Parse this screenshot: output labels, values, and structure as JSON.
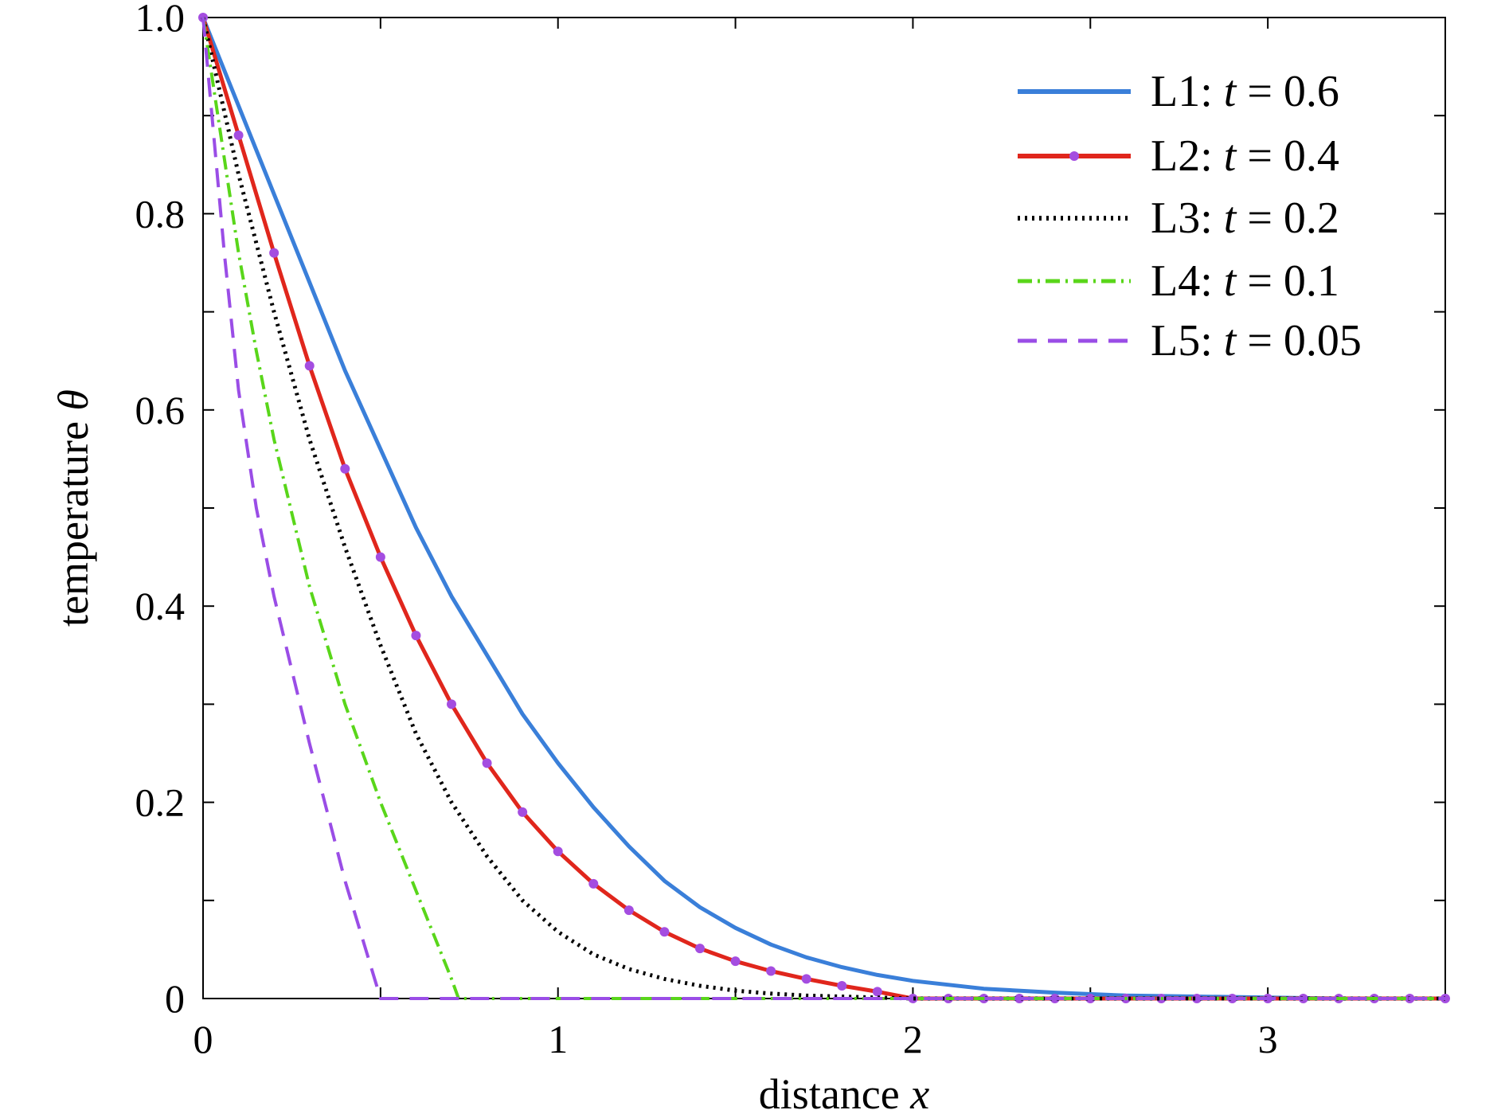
{
  "chart_data": {
    "type": "line",
    "title": "",
    "xlabel": "distance",
    "xlabel_var": "x",
    "ylabel": "temperature",
    "ylabel_var": "θ",
    "xlim": [
      0,
      3.5
    ],
    "ylim": [
      0,
      1.0
    ],
    "xticks": [
      0,
      1,
      2,
      3
    ],
    "xtick_labels": [
      "0",
      "1",
      "2",
      "3"
    ],
    "yticks": [
      0,
      0.2,
      0.4,
      0.6,
      0.8,
      1.0
    ],
    "ytick_labels": [
      "0",
      "0.2",
      "0.4",
      "0.6",
      "0.8",
      "1.0"
    ],
    "legend_position": "top-right",
    "grid": false,
    "series": [
      {
        "name": "L1",
        "legend_var": "t",
        "legend_value": "0.6",
        "color": "#3a7fd9",
        "style": "solid",
        "x": [
          0,
          0.1,
          0.2,
          0.3,
          0.4,
          0.5,
          0.6,
          0.7,
          0.8,
          0.9,
          1.0,
          1.1,
          1.2,
          1.3,
          1.4,
          1.5,
          1.6,
          1.7,
          1.8,
          1.9,
          2.0,
          2.2,
          2.4,
          2.6,
          2.8,
          3.0,
          3.2,
          3.5
        ],
        "y": [
          1.0,
          0.91,
          0.82,
          0.73,
          0.64,
          0.56,
          0.48,
          0.41,
          0.35,
          0.29,
          0.24,
          0.195,
          0.155,
          0.12,
          0.093,
          0.072,
          0.055,
          0.042,
          0.032,
          0.024,
          0.018,
          0.01,
          0.006,
          0.003,
          0.002,
          0.001,
          0.0,
          0.0
        ]
      },
      {
        "name": "L2",
        "legend_var": "t",
        "legend_value": "0.4",
        "color": "#e0261c",
        "marker_color": "#a44de0",
        "style": "solid-markers",
        "x": [
          0,
          0.1,
          0.2,
          0.3,
          0.4,
          0.5,
          0.6,
          0.7,
          0.8,
          0.9,
          1.0,
          1.1,
          1.2,
          1.3,
          1.4,
          1.5,
          1.6,
          1.7,
          1.8,
          1.9,
          2.0,
          2.1,
          2.2,
          2.3,
          2.4,
          2.5,
          2.6,
          2.7,
          2.8,
          2.9,
          3.0,
          3.1,
          3.2,
          3.3,
          3.4,
          3.5
        ],
        "y": [
          1.0,
          0.88,
          0.76,
          0.645,
          0.54,
          0.45,
          0.37,
          0.3,
          0.24,
          0.19,
          0.15,
          0.117,
          0.09,
          0.068,
          0.051,
          0.038,
          0.028,
          0.02,
          0.013,
          0.007,
          0.0,
          0.0,
          0.0,
          0.0,
          0.0,
          0.0,
          0.0,
          0.0,
          0.0,
          0.0,
          0.0,
          0.0,
          0.0,
          0.0,
          0.0,
          0.0
        ]
      },
      {
        "name": "L3",
        "legend_var": "t",
        "legend_value": "0.2",
        "color": "#000000",
        "style": "dotted",
        "x": [
          0,
          0.05,
          0.1,
          0.15,
          0.2,
          0.3,
          0.4,
          0.5,
          0.6,
          0.7,
          0.8,
          0.9,
          1.0,
          1.1,
          1.2,
          1.3,
          1.4,
          1.5,
          1.6,
          1.7,
          1.8,
          1.9,
          2.0,
          2.2,
          2.5,
          3.0,
          3.5
        ],
        "y": [
          1.0,
          0.92,
          0.84,
          0.77,
          0.7,
          0.57,
          0.46,
          0.36,
          0.27,
          0.2,
          0.145,
          0.1,
          0.068,
          0.045,
          0.03,
          0.02,
          0.013,
          0.008,
          0.005,
          0.003,
          0.002,
          0.001,
          0.0,
          0.0,
          0.0,
          0.0,
          0.0
        ]
      },
      {
        "name": "L4",
        "legend_var": "t",
        "legend_value": "0.1",
        "color": "#59d61a",
        "style": "dashdot",
        "x": [
          0,
          0.05,
          0.1,
          0.15,
          0.2,
          0.3,
          0.4,
          0.5,
          0.6,
          0.65,
          0.7,
          0.72,
          1.0,
          2.0,
          3.0,
          3.5
        ],
        "y": [
          1.0,
          0.88,
          0.76,
          0.66,
          0.57,
          0.42,
          0.3,
          0.2,
          0.11,
          0.065,
          0.02,
          0.0,
          0.0,
          0.0,
          0.0,
          0.0
        ]
      },
      {
        "name": "L5",
        "legend_var": "t",
        "legend_value": "0.05",
        "color": "#9a4de6",
        "style": "dashed",
        "x": [
          0,
          0.03,
          0.06,
          0.1,
          0.15,
          0.2,
          0.3,
          0.4,
          0.45,
          0.5,
          1.0,
          2.0,
          3.0,
          3.5
        ],
        "y": [
          1.0,
          0.88,
          0.76,
          0.62,
          0.5,
          0.41,
          0.26,
          0.12,
          0.06,
          0.0,
          0.0,
          0.0,
          0.0,
          0.0
        ]
      }
    ]
  }
}
